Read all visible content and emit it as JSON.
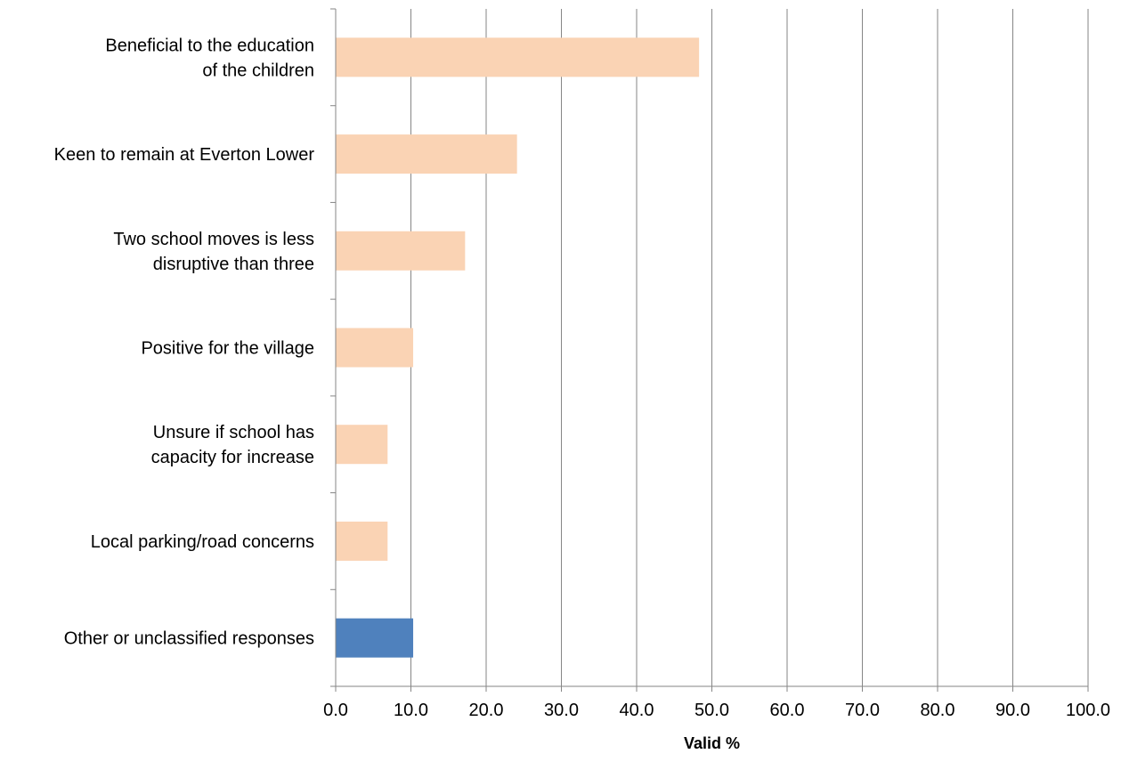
{
  "chart_data": {
    "type": "bar",
    "orientation": "horizontal",
    "categories": [
      [
        "Beneficial to the education",
        "of the children"
      ],
      [
        "Keen to remain at Everton Lower"
      ],
      [
        "Two school moves is less",
        "disruptive than three"
      ],
      [
        "Positive for the village"
      ],
      [
        "Unsure if school has",
        "capacity for increase"
      ],
      [
        "Local parking/road concerns"
      ],
      [
        "Other or unclassified responses"
      ]
    ],
    "values": [
      48.3,
      24.1,
      17.2,
      10.3,
      6.9,
      6.9,
      10.3
    ],
    "bar_colors": [
      "#FAD3B4",
      "#FAD3B4",
      "#FAD3B4",
      "#FAD3B4",
      "#FAD3B4",
      "#FAD3B4",
      "#4F81BD"
    ],
    "xlabel": "Valid %",
    "xlim": [
      0,
      100
    ],
    "xticks": [
      "0.0",
      "10.0",
      "20.0",
      "30.0",
      "40.0",
      "50.0",
      "60.0",
      "70.0",
      "80.0",
      "90.0",
      "100.0"
    ],
    "grid": "vertical",
    "gridline_color": "#868686"
  }
}
